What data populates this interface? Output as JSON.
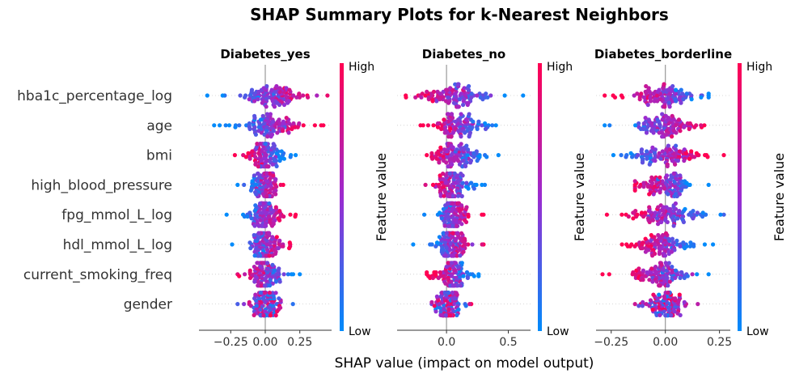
{
  "chart_data": {
    "type": "scatter",
    "title": "SHAP Summary Plots for k-Nearest Neighbors",
    "xlabel": "SHAP value (impact on model output)",
    "features": [
      "hba1c_percentage_log",
      "age",
      "bmi",
      "high_blood_pressure",
      "fpg_mmol_L_log",
      "hdl_mmol_L_log",
      "current_smoking_freq",
      "gender"
    ],
    "colorbar": {
      "label": "Feature value",
      "high": "High",
      "low": "Low",
      "low_color": "#008bfb",
      "mid_color": "#9b2bd0",
      "high_color": "#ff0052"
    },
    "panels": [
      {
        "name": "Diabetes_yes",
        "xlim": [
          -0.48,
          0.48
        ],
        "xticks": [
          -0.25,
          0.0,
          0.25
        ],
        "xtick_labels": [
          "−0.25",
          "0.00",
          "0.25"
        ],
        "rows": [
          {
            "feature": "hba1c_percentage_log",
            "range": [
              -0.42,
              0.45
            ],
            "low_side": "negative",
            "spread": 0.12,
            "bulk": 0.07
          },
          {
            "feature": "age",
            "range": [
              -0.37,
              0.42
            ],
            "low_side": "negative",
            "spread": 0.11,
            "bulk": 0.05
          },
          {
            "feature": "bmi",
            "range": [
              -0.22,
              0.22
            ],
            "low_side": "positive",
            "spread": 0.07,
            "bulk": 0.0
          },
          {
            "feature": "high_blood_pressure",
            "range": [
              -0.2,
              0.13
            ],
            "low_side": "negative",
            "spread": 0.06,
            "bulk": 0.0
          },
          {
            "feature": "fpg_mmol_L_log",
            "range": [
              -0.28,
              0.22
            ],
            "low_side": "negative",
            "spread": 0.06,
            "bulk": 0.0
          },
          {
            "feature": "hdl_mmol_L_log",
            "range": [
              -0.24,
              0.18
            ],
            "low_side": "negative",
            "spread": 0.06,
            "bulk": 0.0
          },
          {
            "feature": "current_smoking_freq",
            "range": [
              -0.2,
              0.25
            ],
            "low_side": "positive",
            "spread": 0.06,
            "bulk": 0.0
          },
          {
            "feature": "gender",
            "range": [
              -0.2,
              0.2
            ],
            "low_side": "mixed",
            "spread": 0.05,
            "bulk": 0.0
          }
        ]
      },
      {
        "name": "Diabetes_no",
        "xlim": [
          -0.4,
          0.68
        ],
        "xticks": [
          0.0,
          0.5
        ],
        "xtick_labels": [
          "0.0",
          "0.5"
        ],
        "rows": [
          {
            "feature": "hba1c_percentage_log",
            "range": [
              -0.33,
              0.62
            ],
            "low_side": "positive",
            "spread": 0.15,
            "bulk": 0.08
          },
          {
            "feature": "age",
            "range": [
              -0.21,
              0.4
            ],
            "low_side": "positive",
            "spread": 0.1,
            "bulk": 0.08
          },
          {
            "feature": "bmi",
            "range": [
              -0.16,
              0.42
            ],
            "low_side": "positive",
            "spread": 0.09,
            "bulk": 0.08
          },
          {
            "feature": "high_blood_pressure",
            "range": [
              -0.17,
              0.31
            ],
            "low_side": "positive",
            "spread": 0.07,
            "bulk": 0.06
          },
          {
            "feature": "fpg_mmol_L_log",
            "range": [
              -0.18,
              0.3
            ],
            "low_side": "negative",
            "spread": 0.06,
            "bulk": 0.06
          },
          {
            "feature": "hdl_mmol_L_log",
            "range": [
              -0.27,
              0.3
            ],
            "low_side": "negative",
            "spread": 0.06,
            "bulk": 0.05
          },
          {
            "feature": "current_smoking_freq",
            "range": [
              -0.16,
              0.26
            ],
            "low_side": "positive",
            "spread": 0.07,
            "bulk": 0.05
          },
          {
            "feature": "gender",
            "range": [
              -0.12,
              0.2
            ],
            "low_side": "mixed",
            "spread": 0.05,
            "bulk": 0.0
          }
        ]
      },
      {
        "name": "Diabetes_borderline",
        "xlim": [
          -0.32,
          0.3
        ],
        "xticks": [
          -0.25,
          0.0,
          0.25
        ],
        "xtick_labels": [
          "−0.25",
          "0.00",
          "0.25"
        ],
        "rows": [
          {
            "feature": "hba1c_percentage_log",
            "range": [
              -0.28,
              0.2
            ],
            "low_side": "positive",
            "spread": 0.09,
            "bulk": 0.0
          },
          {
            "feature": "age",
            "range": [
              -0.28,
              0.18
            ],
            "low_side": "negative",
            "spread": 0.07,
            "bulk": 0.0
          },
          {
            "feature": "bmi",
            "range": [
              -0.24,
              0.27
            ],
            "low_side": "negative",
            "spread": 0.09,
            "bulk": 0.0
          },
          {
            "feature": "high_blood_pressure",
            "range": [
              -0.14,
              0.2
            ],
            "low_side": "positive",
            "spread": 0.07,
            "bulk": 0.0
          },
          {
            "feature": "fpg_mmol_L_log",
            "range": [
              -0.27,
              0.27
            ],
            "low_side": "positive",
            "spread": 0.09,
            "bulk": 0.0
          },
          {
            "feature": "hdl_mmol_L_log",
            "range": [
              -0.2,
              0.22
            ],
            "low_side": "positive",
            "spread": 0.07,
            "bulk": 0.0
          },
          {
            "feature": "current_smoking_freq",
            "range": [
              -0.29,
              0.2
            ],
            "low_side": "positive",
            "spread": 0.06,
            "bulk": -0.02
          },
          {
            "feature": "gender",
            "range": [
              -0.14,
              0.15
            ],
            "low_side": "mixed",
            "spread": 0.05,
            "bulk": 0.0
          }
        ]
      }
    ]
  }
}
